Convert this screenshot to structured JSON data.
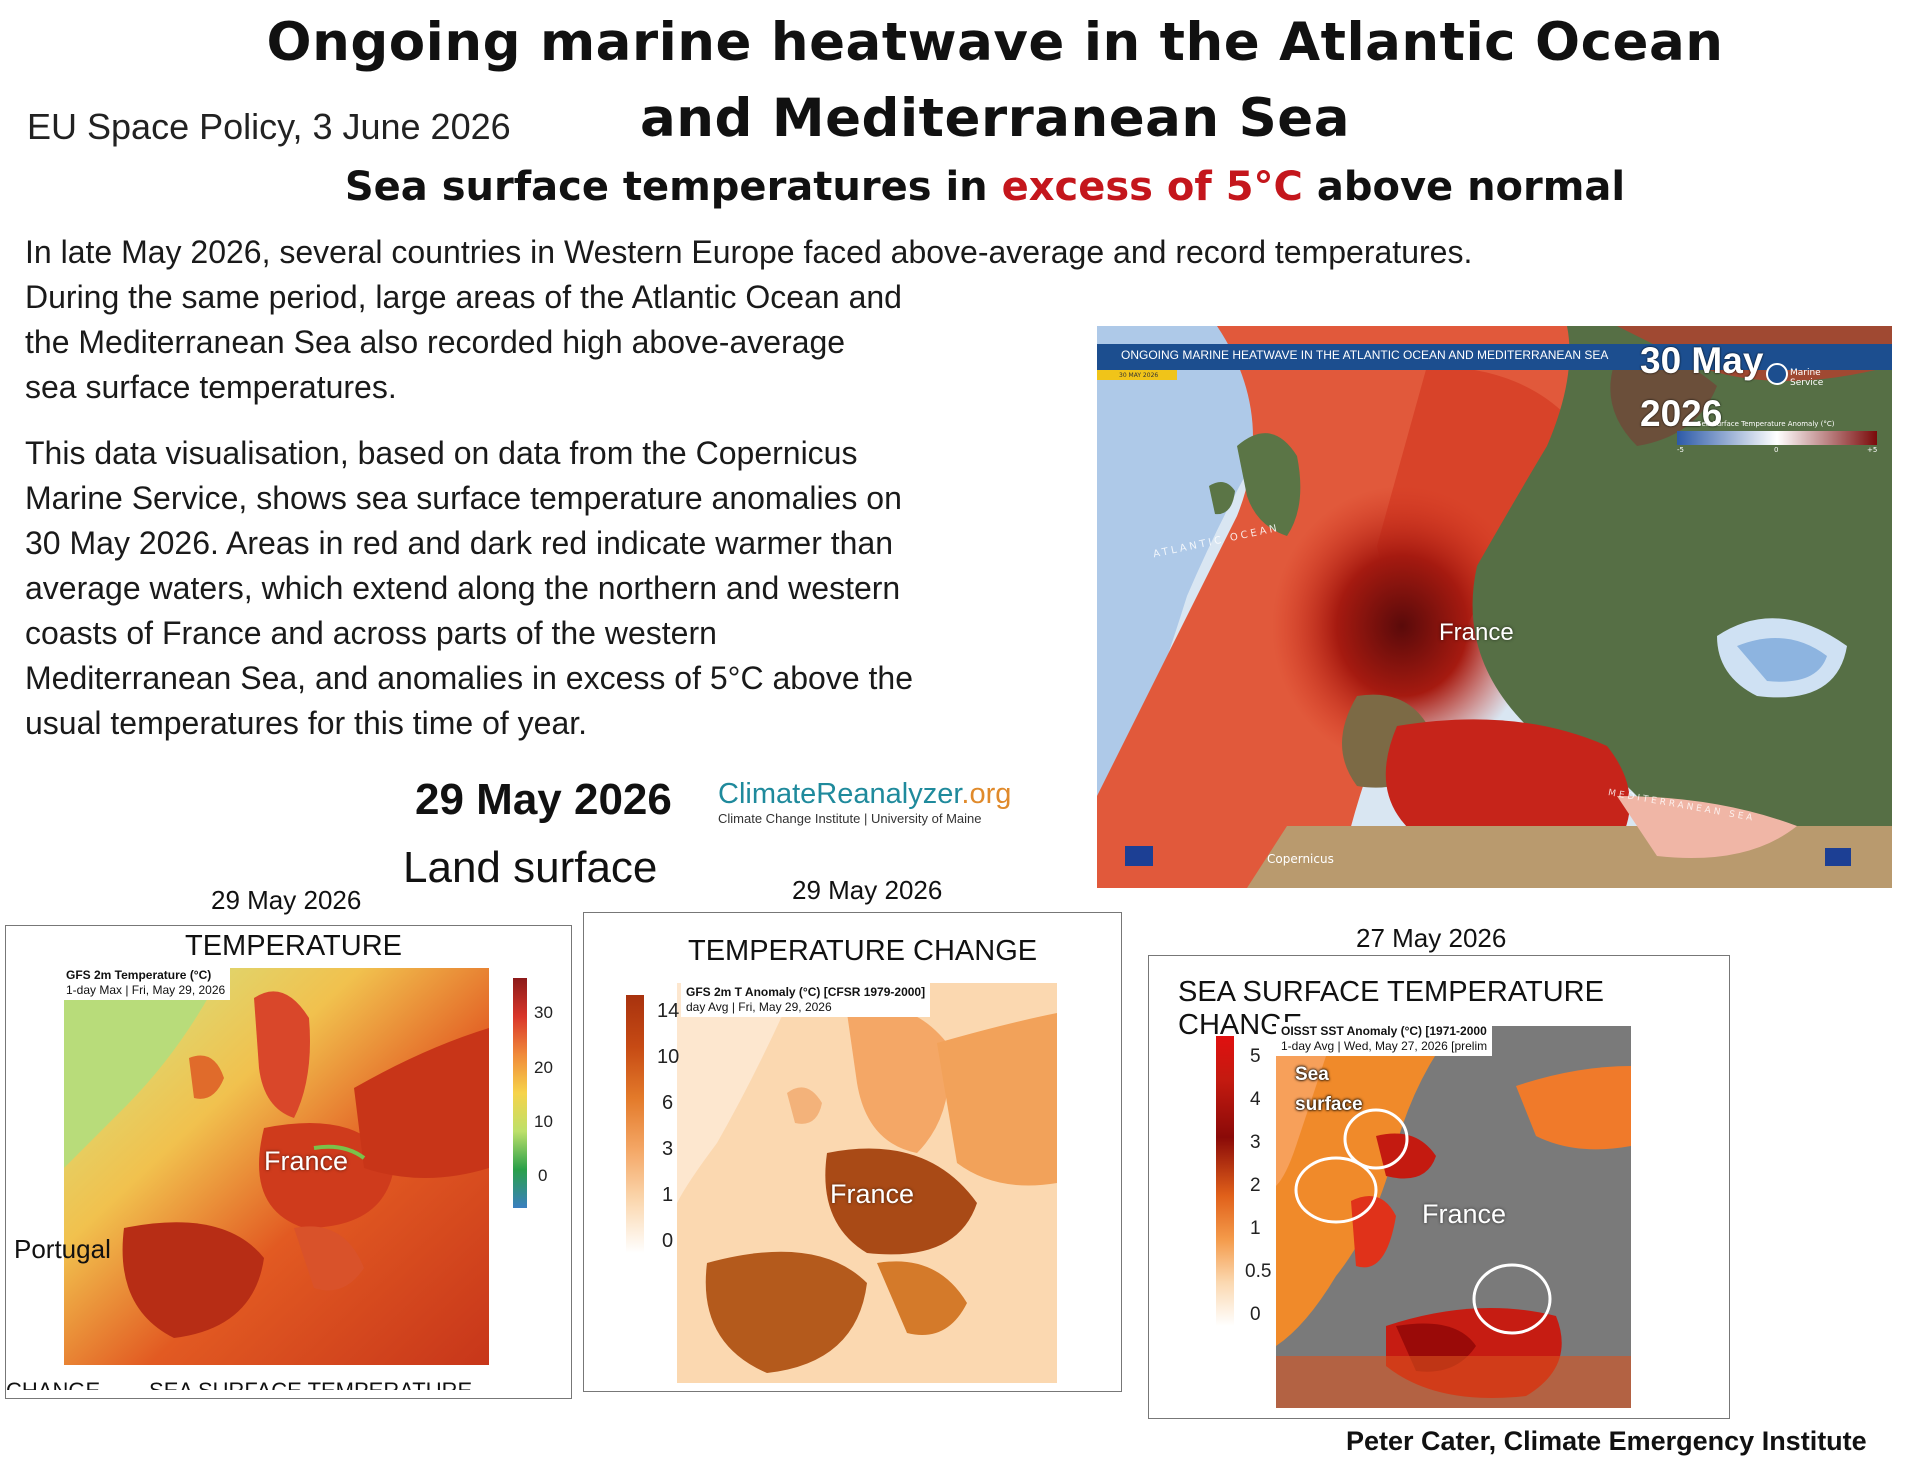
{
  "header": {
    "title_line1": "Ongoing marine heatwave in the Atlantic Ocean",
    "title_line2": "and Mediterranean Sea",
    "source_date": "EU Space Policy, 3 June 2026",
    "subtitle_pre": "Sea surface temperatures in ",
    "subtitle_highlight": "excess of 5°C",
    "subtitle_post": " above normal"
  },
  "body": {
    "intro": "In late May 2026, several countries in Western Europe faced above-average and record temperatures.",
    "para1_lines": [
      "During the same period, large areas of the Atlantic Ocean and",
      "the Mediterranean Sea also recorded  high above-average",
      "sea surface temperatures."
    ],
    "para2_lines": [
      "This data visualisation, based on data from the Copernicus",
      "Marine Service, shows sea surface temperature anomalies on",
      "30 May 2026. Areas in red and dark red indicate warmer than",
      "average waters, which extend along the northern and western",
      "coasts of France and across parts of the western",
      "Mediterranean Sea, and anomalies in excess of 5°C above the",
      "usual temperatures for this time of year."
    ]
  },
  "climate_reanalyzer": {
    "date": "29 May 2026",
    "caption": "Land surface",
    "logo_main": "ClimateReanalyzer",
    "logo_suffix": ".org",
    "logo_sub": "Climate Change Institute | University of Maine"
  },
  "copernicus_map": {
    "banner": "ONGOING MARINE HEATWAVE IN THE ATLANTIC OCEAN AND MEDITERRANEAN SEA",
    "banner_date": "30 MAY 2026",
    "date_label_1": "30 May",
    "date_label_2": "2026",
    "service_line1": "Marine",
    "service_line2": "Service",
    "legend_title": "Sea Surface Temperature Anomaly (°C)",
    "legend_ticks": [
      "-5",
      "0",
      "+5"
    ],
    "ocean_label": "ATLANTIC OCEAN",
    "sea_label": "MEDITERRANEAN SEA",
    "country_label": "France",
    "footer_logo": "Copernicus"
  },
  "panel_temperature": {
    "date": "29 May 2026",
    "title": "TEMPERATURE",
    "inset_line1": "GFS 2m Temperature (°C)",
    "inset_line2": "1-day Max | Fri, May 29, 2026",
    "ticks": [
      "30",
      "20",
      "10",
      "0"
    ],
    "label_france": "France",
    "label_portugal": "Portugal",
    "cut_text": "CHANGE        SEA SURFACE TEMPERATURE"
  },
  "panel_change": {
    "date": "29 May 2026",
    "title": "TEMPERATURE CHANGE",
    "inset_line1": "GFS 2m T Anomaly (°C) [CFSR 1979-2000]",
    "inset_line2": "day Avg | Fri, May 29, 2026",
    "ticks": [
      "14",
      "10",
      "6",
      "3",
      "1",
      "0"
    ],
    "label_france": "France"
  },
  "panel_sst": {
    "date": "27 May 2026",
    "title": "SEA SURFACE TEMPERATURE CHANGE",
    "inset_line1": "OISST SST Anomaly (°C) [1971-2000",
    "inset_line2": "1-day Avg | Wed, May 27, 2026 [prelim",
    "ticks": [
      "5",
      "4",
      "3",
      "2",
      "1",
      "0.5",
      "0"
    ],
    "annotation_1": "Sea",
    "annotation_2": "surface",
    "label_france": "France"
  },
  "credit": "Peter Cater, Climate Emergency Institute"
}
